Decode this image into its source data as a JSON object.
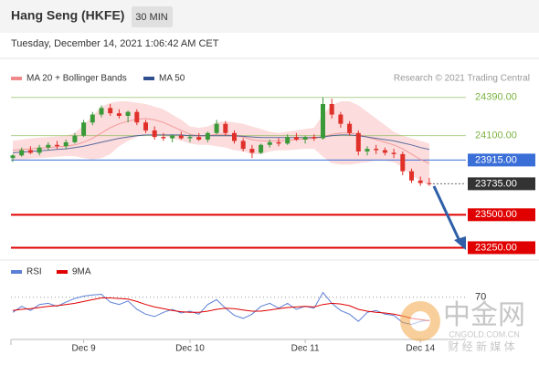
{
  "header": {
    "title": "Hang Seng (HKFE)",
    "interval": "30 MIN",
    "timestamp": "Tuesday, December 14, 2021 1:06:42 AM CET"
  },
  "watermark": {
    "brand": "中金网",
    "site": "CNGOLD.COM.CN",
    "tagline": "财 经 新 媒 体"
  },
  "chart_data": [
    {
      "type": "candlestick",
      "credit": "Research © 2021 Trading Central",
      "up_color": "#3a9a3a",
      "down_color": "#e0302a",
      "ylim": [
        23170,
        24520
      ],
      "categories": [
        null,
        null,
        null,
        null,
        null,
        null,
        null,
        null,
        "Dec 9",
        null,
        null,
        null,
        null,
        null,
        null,
        null,
        null,
        null,
        null,
        null,
        "Dec 10",
        null,
        null,
        null,
        null,
        null,
        null,
        null,
        null,
        null,
        null,
        null,
        null,
        "Dec 11",
        null,
        null,
        null,
        null,
        null,
        null,
        null,
        null,
        null,
        null,
        null,
        null,
        "Dec 14",
        null
      ],
      "open": [
        23930,
        23950,
        23990,
        23970,
        24010,
        24030,
        24020,
        24050,
        24100,
        24200,
        24260,
        24310,
        24270,
        24250,
        24280,
        24200,
        24140,
        24090,
        24080,
        24100,
        24080,
        24090,
        24070,
        24120,
        24190,
        24120,
        24060,
        24000,
        23970,
        24030,
        24050,
        24040,
        24090,
        24070,
        24090,
        24080,
        24340,
        24260,
        24190,
        24120,
        23980,
        24000,
        23990,
        23970,
        23960,
        23830,
        23760,
        23740
      ],
      "high": [
        23960,
        24010,
        24020,
        24030,
        24050,
        24060,
        24070,
        24120,
        24220,
        24280,
        24330,
        24340,
        24300,
        24290,
        24300,
        24220,
        24170,
        24120,
        24110,
        24130,
        24110,
        24120,
        24130,
        24220,
        24210,
        24140,
        24080,
        24030,
        24040,
        24070,
        24080,
        24110,
        24120,
        24100,
        24110,
        24390,
        24380,
        24280,
        24210,
        24140,
        24020,
        24030,
        24010,
        24000,
        23980,
        23850,
        23790,
        23780
      ],
      "low": [
        23900,
        23940,
        23960,
        23950,
        23990,
        24000,
        24000,
        24040,
        24090,
        24180,
        24240,
        24250,
        24230,
        24200,
        24180,
        24120,
        24070,
        24060,
        24050,
        24070,
        24050,
        24060,
        24050,
        24110,
        24100,
        24040,
        23980,
        23930,
        23960,
        24010,
        24020,
        24030,
        24060,
        24040,
        24060,
        24070,
        24230,
        24160,
        24100,
        23950,
        23950,
        23960,
        23950,
        23930,
        23800,
        23740,
        23720,
        23720
      ],
      "close": [
        23950,
        23990,
        23970,
        24010,
        24030,
        24020,
        24050,
        24100,
        24200,
        24260,
        24310,
        24270,
        24250,
        24280,
        24200,
        24140,
        24090,
        24080,
        24100,
        24080,
        24090,
        24070,
        24120,
        24190,
        24120,
        24060,
        24000,
        23970,
        24030,
        24050,
        24040,
        24090,
        24070,
        24090,
        24080,
        24340,
        24260,
        24190,
        24120,
        23980,
        24000,
        23990,
        23970,
        23960,
        23830,
        23760,
        23740,
        23735
      ],
      "series": [
        {
          "name": "MA 20 + Bollinger Bands",
          "color": "#f08a8a",
          "band_color": "#fbd3d3",
          "values": [
            23990,
            23995,
            24000,
            24005,
            24010,
            24015,
            24020,
            24030,
            24050,
            24080,
            24120,
            24160,
            24190,
            24210,
            24225,
            24230,
            24220,
            24200,
            24170,
            24140,
            24110,
            24100,
            24100,
            24110,
            24110,
            24100,
            24090,
            24070,
            24060,
            24060,
            24060,
            24065,
            24070,
            24075,
            24080,
            24090,
            24110,
            24120,
            24120,
            24110,
            24090,
            24070,
            24050,
            24030,
            24000,
            23960,
            23920,
            23890
          ],
          "upper": [
            24060,
            24070,
            24080,
            24085,
            24090,
            24095,
            24100,
            24120,
            24180,
            24250,
            24320,
            24350,
            24360,
            24360,
            24350,
            24340,
            24320,
            24300,
            24260,
            24220,
            24170,
            24160,
            24170,
            24200,
            24210,
            24200,
            24190,
            24170,
            24150,
            24130,
            24120,
            24130,
            24140,
            24150,
            24160,
            24260,
            24330,
            24360,
            24360,
            24330,
            24280,
            24230,
            24180,
            24130,
            24100,
            24080,
            24060,
            24040
          ],
          "lower": [
            23920,
            23920,
            23925,
            23930,
            23935,
            23940,
            23945,
            23945,
            23930,
            23920,
            23930,
            23960,
            24020,
            24060,
            24090,
            24110,
            24110,
            24100,
            24080,
            24060,
            24040,
            24030,
            24030,
            24020,
            24010,
            23990,
            23980,
            23960,
            23960,
            23980,
            23990,
            23990,
            23995,
            24000,
            24000,
            23940,
            23890,
            23880,
            23880,
            23890,
            23900,
            23910,
            23910,
            23900,
            23860,
            23800,
            23760,
            23720
          ]
        },
        {
          "name": "MA 50",
          "color": "#2f4f8f",
          "values": [
            23970,
            23975,
            23980,
            23985,
            23990,
            23995,
            24000,
            24010,
            24020,
            24035,
            24050,
            24065,
            24080,
            24090,
            24100,
            24105,
            24105,
            24105,
            24105,
            24105,
            24100,
            24100,
            24100,
            24100,
            24100,
            24100,
            24095,
            24090,
            24085,
            24085,
            24085,
            24085,
            24085,
            24085,
            24085,
            24090,
            24100,
            24105,
            24105,
            24100,
            24090,
            24080,
            24070,
            24060,
            24045,
            24030,
            24010,
            23995
          ]
        }
      ],
      "levels": [
        {
          "value": 24390,
          "label": "24390.00",
          "color": "#7cb342",
          "boxed": false
        },
        {
          "value": 24100,
          "label": "24100.00",
          "color": "#7cb342",
          "boxed": false
        },
        {
          "value": 23915,
          "label": "23915.00",
          "color": "#3b6fd8",
          "boxed": true
        },
        {
          "value": 23735,
          "label": "23735.00",
          "color": "#333333",
          "boxed": true,
          "dotted": true
        },
        {
          "value": 23500,
          "label": "23500.00",
          "color": "#e00000",
          "boxed": true
        },
        {
          "value": 23250,
          "label": "23250.00",
          "color": "#e00000",
          "boxed": true
        }
      ]
    },
    {
      "type": "line",
      "ylim": [
        0,
        100
      ],
      "yticks": [
        70
      ],
      "series": [
        {
          "name": "RSI",
          "color": "#5b7fd6",
          "values": [
            45,
            55,
            48,
            58,
            60,
            55,
            62,
            68,
            72,
            74,
            75,
            62,
            58,
            64,
            50,
            42,
            38,
            45,
            50,
            44,
            47,
            42,
            58,
            66,
            52,
            40,
            35,
            42,
            55,
            60,
            52,
            60,
            50,
            55,
            52,
            78,
            60,
            48,
            42,
            30,
            45,
            48,
            42,
            40,
            28,
            25,
            30,
            32
          ]
        },
        {
          "name": "9MA",
          "color": "#e00000",
          "values": [
            48,
            50,
            51,
            53,
            55,
            56,
            58,
            60,
            63,
            66,
            69,
            69,
            68,
            67,
            63,
            58,
            54,
            51,
            48,
            46,
            45,
            45,
            47,
            50,
            52,
            51,
            49,
            47,
            47,
            49,
            51,
            53,
            54,
            55,
            54,
            58,
            60,
            59,
            56,
            50,
            47,
            45,
            44,
            42,
            39,
            35,
            33,
            31
          ]
        }
      ]
    }
  ]
}
